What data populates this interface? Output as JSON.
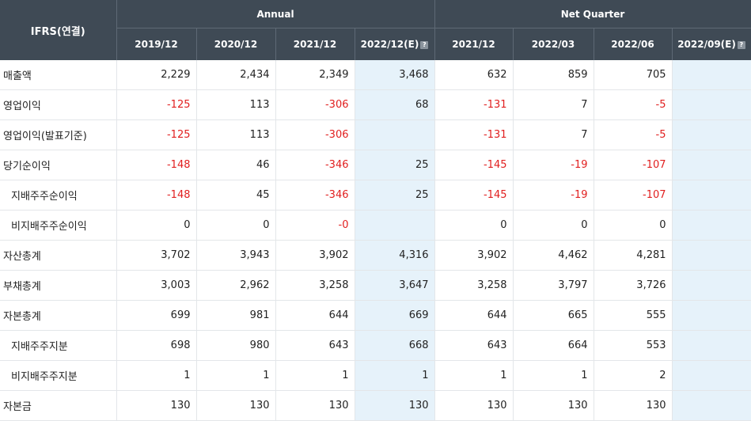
{
  "header": {
    "label": "IFRS(연결)",
    "annual": "Annual",
    "quarter": "Net Quarter",
    "est_icon": "?"
  },
  "columns": [
    "2019/12",
    "2020/12",
    "2021/12",
    "2022/12(E)",
    "2021/12",
    "2022/03",
    "2022/06",
    "2022/09(E)"
  ],
  "rows": [
    {
      "label": "매출액",
      "sub": false,
      "values": [
        "2,229",
        "2,434",
        "2,349",
        "3,468",
        "632",
        "859",
        "705",
        ""
      ]
    },
    {
      "label": "영업이익",
      "sub": false,
      "values": [
        "-125",
        "113",
        "-306",
        "68",
        "-131",
        "7",
        "-5",
        ""
      ]
    },
    {
      "label": "영업이익(발표기준)",
      "sub": false,
      "values": [
        "-125",
        "113",
        "-306",
        "",
        "-131",
        "7",
        "-5",
        ""
      ]
    },
    {
      "label": "당기순이익",
      "sub": false,
      "values": [
        "-148",
        "46",
        "-346",
        "25",
        "-145",
        "-19",
        "-107",
        ""
      ]
    },
    {
      "label": "지배주주순이익",
      "sub": true,
      "values": [
        "-148",
        "45",
        "-346",
        "25",
        "-145",
        "-19",
        "-107",
        ""
      ]
    },
    {
      "label": "비지배주주순이익",
      "sub": true,
      "values": [
        "0",
        "0",
        "-0",
        "",
        "0",
        "0",
        "0",
        ""
      ]
    },
    {
      "label": "자산총계",
      "sub": false,
      "values": [
        "3,702",
        "3,943",
        "3,902",
        "4,316",
        "3,902",
        "4,462",
        "4,281",
        ""
      ]
    },
    {
      "label": "부채총계",
      "sub": false,
      "values": [
        "3,003",
        "2,962",
        "3,258",
        "3,647",
        "3,258",
        "3,797",
        "3,726",
        ""
      ]
    },
    {
      "label": "자본총계",
      "sub": false,
      "values": [
        "699",
        "981",
        "644",
        "669",
        "644",
        "665",
        "555",
        ""
      ]
    },
    {
      "label": "지배주주지분",
      "sub": true,
      "values": [
        "698",
        "980",
        "643",
        "668",
        "643",
        "664",
        "553",
        ""
      ]
    },
    {
      "label": "비지배주주지분",
      "sub": true,
      "values": [
        "1",
        "1",
        "1",
        "1",
        "1",
        "1",
        "2",
        ""
      ]
    },
    {
      "label": "자본금",
      "sub": false,
      "values": [
        "130",
        "130",
        "130",
        "130",
        "130",
        "130",
        "130",
        ""
      ]
    }
  ],
  "colors": {
    "header_bg": "#3f4a55",
    "estimate_bg": "#e6f2fa",
    "negative": "#e11f1f"
  }
}
